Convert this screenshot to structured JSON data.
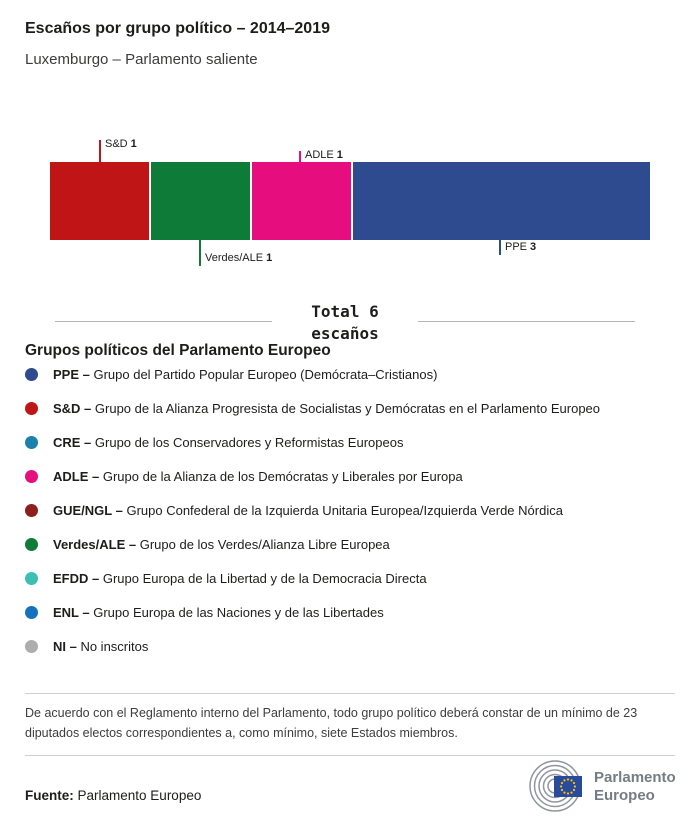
{
  "header": {
    "title": "Escaños por grupo político – 2014–2019",
    "subtitle": "Luxemburgo – Parlamento saliente"
  },
  "chart_data": {
    "type": "stacked_bar",
    "title": "Escaños por grupo político – 2014–2019",
    "subtitle": "Luxemburgo – Parlamento saliente",
    "total_seats": 6,
    "unit": "escaños",
    "segments": [
      {
        "group": "S&D",
        "seats": 1,
        "color": "#c01517",
        "callout_side": "top",
        "callout_tick_len": 22
      },
      {
        "group": "Verdes/ALE",
        "seats": 1,
        "color": "#0f7b38",
        "callout_side": "bottom",
        "callout_tick_len": 26
      },
      {
        "group": "ADLE",
        "seats": 1,
        "color": "#e60d7e",
        "callout_side": "top",
        "callout_tick_len": 11
      },
      {
        "group": "PPE",
        "seats": 3,
        "color": "#2d4b8e",
        "callout_side": "bottom",
        "callout_tick_len": 15
      }
    ]
  },
  "total": {
    "line1": "Total 6",
    "line2": "escaños"
  },
  "legend": {
    "heading": "Grupos políticos del Parlamento Europeo",
    "separator": "–",
    "items": [
      {
        "abbr": "PPE",
        "name": "Grupo del Partido Popular Europeo (Demócrata–Cristianos)",
        "color": "#2d4b8e"
      },
      {
        "abbr": "S&D",
        "name": "Grupo de la Alianza Progresista de Socialistas y Demócratas en el Parlamento Europeo",
        "color": "#c01517"
      },
      {
        "abbr": "CRE",
        "name": "Grupo de los Conservadores y Reformistas Europeos",
        "color": "#1b80ab"
      },
      {
        "abbr": "ADLE",
        "name": "Grupo de la Alianza de los Demócratas y Liberales por Europa",
        "color": "#e60d7e"
      },
      {
        "abbr": "GUE/NGL",
        "name": "Grupo Confederal de la Izquierda Unitaria Europea/Izquierda Verde Nórdica",
        "color": "#8e1f1f"
      },
      {
        "abbr": "Verdes/ALE",
        "name": "Grupo de los Verdes/Alianza Libre Europea",
        "color": "#0f7b38"
      },
      {
        "abbr": "EFDD",
        "name": "Grupo Europa de la Libertad y de la Democracia Directa",
        "color": "#3dc0b4"
      },
      {
        "abbr": "ENL",
        "name": "Grupo Europa de las Naciones y de las Libertades",
        "color": "#1472bc"
      },
      {
        "abbr": "NI",
        "name": "No inscritos",
        "color": "#adadad"
      }
    ]
  },
  "footnote": "De acuerdo con el Reglamento interno del Parlamento, todo grupo político deberá constar de un mínimo de 23 diputados electos correspondientes a, como mínimo, siete Estados miembros.",
  "source": {
    "label": "Fuente:",
    "value": "Parlamento Europeo"
  },
  "logo": {
    "line1": "Parlamento",
    "line2": "Europeo"
  }
}
